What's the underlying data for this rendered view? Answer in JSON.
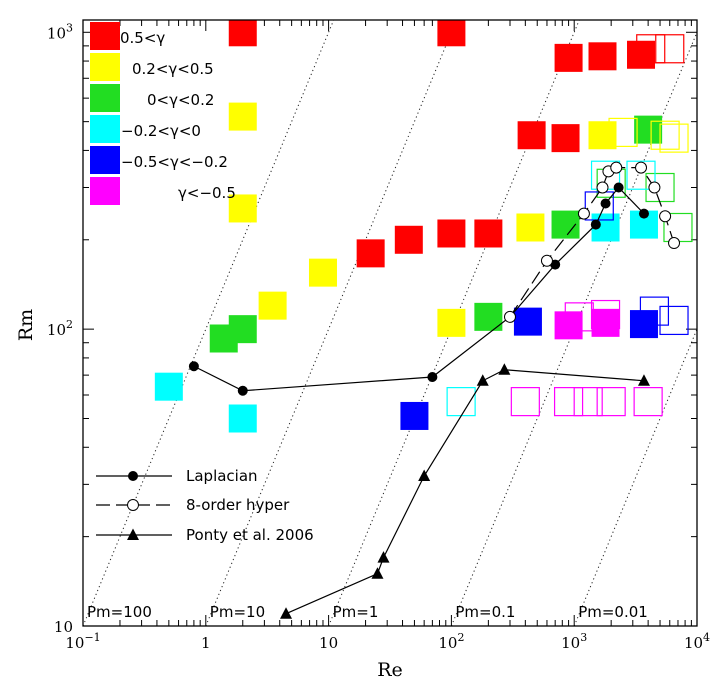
{
  "chart_data": {
    "type": "scatter",
    "xlabel": "Re",
    "ylabel": "Rm",
    "xscale": "log",
    "yscale": "log",
    "xlim": [
      0.1,
      10000
    ],
    "ylim": [
      10,
      1100
    ],
    "x_ticks": [
      {
        "value": 0.1,
        "base": "10",
        "exp": "−1"
      },
      {
        "value": 1,
        "base": "1",
        "exp": ""
      },
      {
        "value": 10,
        "base": "10",
        "exp": ""
      },
      {
        "value": 100,
        "base": "10",
        "exp": "2"
      },
      {
        "value": 1000,
        "base": "10",
        "exp": "3"
      },
      {
        "value": 10000,
        "base": "10",
        "exp": "4"
      }
    ],
    "y_ticks": [
      {
        "value": 10,
        "base": "10",
        "exp": ""
      },
      {
        "value": 100,
        "base": "10",
        "exp": "2"
      },
      {
        "value": 1000,
        "base": "10",
        "exp": "3"
      }
    ],
    "gamma_legend": [
      {
        "label": "0.5<γ",
        "color": "#ff0000"
      },
      {
        "label": "0.2<γ<0.5",
        "color": "#ffff00"
      },
      {
        "label": "0<γ<0.2",
        "color": "#22dd22"
      },
      {
        "label": "−0.2<γ<0",
        "color": "#00ffff"
      },
      {
        "label": "−0.5<γ<−0.2",
        "color": "#0000ff"
      },
      {
        "label": "γ<−0.5",
        "color": "#ff00ff"
      }
    ],
    "filled_squares": [
      {
        "x": 2,
        "y": 1000,
        "color": "#ff0000"
      },
      {
        "x": 100,
        "y": 1000,
        "color": "#ff0000"
      },
      {
        "x": 900,
        "y": 820,
        "color": "#ff0000"
      },
      {
        "x": 1700,
        "y": 830,
        "color": "#ff0000"
      },
      {
        "x": 3500,
        "y": 840,
        "color": "#ff0000"
      },
      {
        "x": 450,
        "y": 450,
        "color": "#ff0000"
      },
      {
        "x": 850,
        "y": 440,
        "color": "#ff0000"
      },
      {
        "x": 22,
        "y": 180,
        "color": "#ff0000"
      },
      {
        "x": 45,
        "y": 200,
        "color": "#ff0000"
      },
      {
        "x": 100,
        "y": 210,
        "color": "#ff0000"
      },
      {
        "x": 200,
        "y": 210,
        "color": "#ff0000"
      },
      {
        "x": 2,
        "y": 520,
        "color": "#ffff00"
      },
      {
        "x": 2,
        "y": 255,
        "color": "#ffff00"
      },
      {
        "x": 9,
        "y": 155,
        "color": "#ffff00"
      },
      {
        "x": 3.5,
        "y": 120,
        "color": "#ffff00"
      },
      {
        "x": 100,
        "y": 105,
        "color": "#ffff00"
      },
      {
        "x": 440,
        "y": 220,
        "color": "#ffff00"
      },
      {
        "x": 1700,
        "y": 450,
        "color": "#ffff00"
      },
      {
        "x": 1.4,
        "y": 93,
        "color": "#22dd22"
      },
      {
        "x": 2,
        "y": 100,
        "color": "#22dd22"
      },
      {
        "x": 200,
        "y": 110,
        "color": "#22dd22"
      },
      {
        "x": 850,
        "y": 225,
        "color": "#22dd22"
      },
      {
        "x": 4000,
        "y": 470,
        "color": "#22dd22"
      },
      {
        "x": 0.5,
        "y": 64,
        "color": "#00ffff"
      },
      {
        "x": 2,
        "y": 50,
        "color": "#00ffff"
      },
      {
        "x": 1800,
        "y": 220,
        "color": "#00ffff"
      },
      {
        "x": 3700,
        "y": 225,
        "color": "#00ffff"
      },
      {
        "x": 50,
        "y": 51,
        "color": "#0000ff"
      },
      {
        "x": 420,
        "y": 106,
        "color": "#0000ff"
      },
      {
        "x": 3700,
        "y": 104,
        "color": "#0000ff"
      },
      {
        "x": 900,
        "y": 103,
        "color": "#ff00ff"
      },
      {
        "x": 1800,
        "y": 105,
        "color": "#ff00ff"
      }
    ],
    "open_squares": [
      {
        "x": 4200,
        "y": 880,
        "color": "#ff0000"
      },
      {
        "x": 6000,
        "y": 880,
        "color": "#ff0000"
      },
      {
        "x": 5500,
        "y": 450,
        "color": "#ffff00"
      },
      {
        "x": 6500,
        "y": 440,
        "color": "#ffff00"
      },
      {
        "x": 2500,
        "y": 460,
        "color": "#ffff00"
      },
      {
        "x": 2000,
        "y": 310,
        "color": "#22dd22"
      },
      {
        "x": 5000,
        "y": 300,
        "color": "#22dd22"
      },
      {
        "x": 7000,
        "y": 220,
        "color": "#22dd22"
      },
      {
        "x": 1800,
        "y": 330,
        "color": "#00ffff"
      },
      {
        "x": 3500,
        "y": 330,
        "color": "#00ffff"
      },
      {
        "x": 1600,
        "y": 260,
        "color": "#0000ff"
      },
      {
        "x": 4500,
        "y": 115,
        "color": "#0000ff"
      },
      {
        "x": 6500,
        "y": 107,
        "color": "#0000ff"
      },
      {
        "x": 1100,
        "y": 110,
        "color": "#ff00ff"
      },
      {
        "x": 1800,
        "y": 112,
        "color": "#ff00ff"
      },
      {
        "x": 120,
        "y": 57,
        "color": "#00ffff"
      },
      {
        "x": 400,
        "y": 57,
        "color": "#ff00ff"
      },
      {
        "x": 900,
        "y": 57,
        "color": "#ff00ff"
      },
      {
        "x": 1300,
        "y": 57,
        "color": "#ff00ff"
      },
      {
        "x": 2000,
        "y": 57,
        "color": "#ff00ff"
      },
      {
        "x": 4000,
        "y": 57,
        "color": "#ff00ff"
      }
    ],
    "series": [
      {
        "name": "Laplacian",
        "marker": "filled-circle",
        "dash": "solid",
        "x": [
          0.8,
          2,
          70,
          300,
          700,
          1500,
          1800,
          2300,
          3700
        ],
        "y": [
          75,
          62,
          69,
          110,
          165,
          225,
          265,
          300,
          245
        ]
      },
      {
        "name": "8-order hyper",
        "marker": "open-circle",
        "dash": "long-dash",
        "x": [
          300,
          600,
          1200,
          1700,
          1900,
          2200,
          3500,
          4500,
          5500,
          6500
        ],
        "y": [
          110,
          170,
          245,
          300,
          340,
          350,
          350,
          300,
          240,
          195
        ]
      },
      {
        "name": "Ponty et al. 2006",
        "marker": "filled-triangle",
        "dash": "solid",
        "x": [
          4.5,
          25,
          28,
          60,
          180,
          270,
          3700
        ],
        "y": [
          11,
          15,
          17,
          32,
          67,
          73,
          67
        ]
      }
    ],
    "pm_lines": [
      {
        "label": "Pm=100",
        "value": 100
      },
      {
        "label": "Pm=10",
        "value": 10
      },
      {
        "label": "Pm=1",
        "value": 1
      },
      {
        "label": "Pm=0.1",
        "value": 0.1
      },
      {
        "label": "Pm=0.01",
        "value": 0.01
      }
    ],
    "grid": false,
    "legend_position": "upper-left and lower-left"
  }
}
